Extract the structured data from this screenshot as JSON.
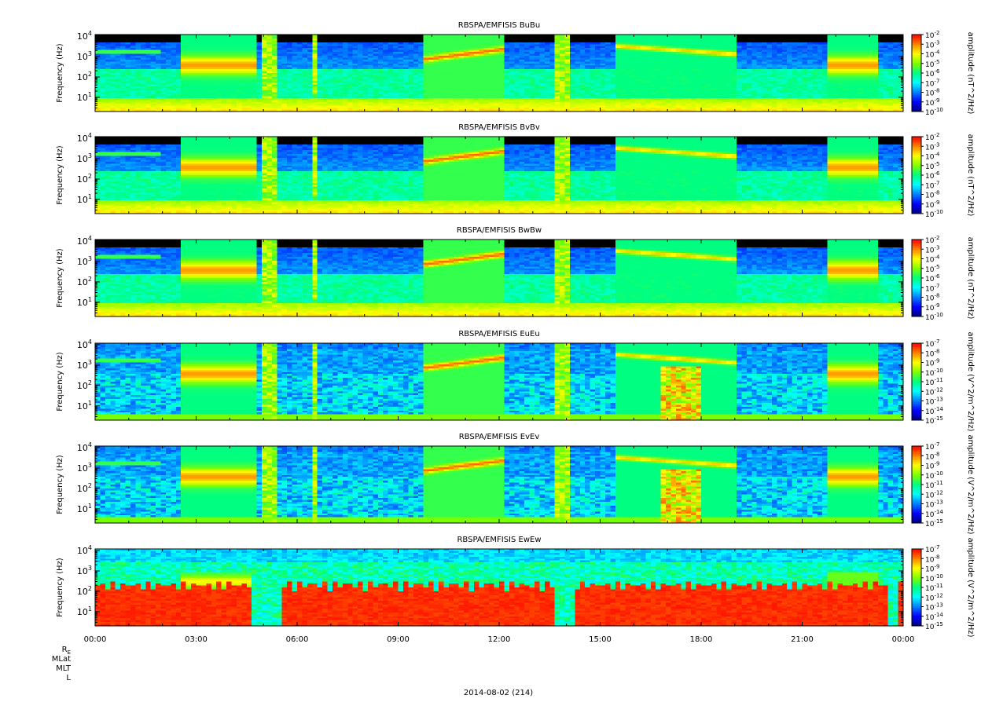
{
  "figure": {
    "date_label": "2014-08-02 (214)",
    "ephemeris_labels": [
      {
        "main": "R",
        "sub": "E"
      },
      {
        "main": "MLat",
        "sub": ""
      },
      {
        "main": "MLT",
        "sub": ""
      },
      {
        "main": "L",
        "sub": ""
      }
    ]
  },
  "chart_data": [
    {
      "type": "heatmap",
      "title": "RBSPA/EMFISIS  BuBu",
      "ylabel": "Frequency (Hz)",
      "yscale": "log",
      "ylim": [
        2,
        12000
      ],
      "yticks": [
        {
          "b": "10",
          "e": "4",
          "v": 10000
        },
        {
          "b": "10",
          "e": "3",
          "v": 1000
        },
        {
          "b": "10",
          "e": "2",
          "v": 100
        },
        {
          "b": "10",
          "e": "1",
          "v": 10
        }
      ],
      "colorbar": {
        "label": "amplitude (nT^2/Hz)",
        "scale": "log",
        "range": [
          1e-10,
          0.01
        ],
        "ticks": [
          "-2",
          "-3",
          "-4",
          "-5",
          "-6",
          "-7",
          "-8",
          "-9",
          "-10"
        ]
      },
      "features": {
        "kind": "B",
        "floor": 0.48
      }
    },
    {
      "type": "heatmap",
      "title": "RBSPA/EMFISIS  BvBv",
      "ylabel": "Frequency (Hz)",
      "yscale": "log",
      "ylim": [
        2,
        12000
      ],
      "yticks": [
        {
          "b": "10",
          "e": "4",
          "v": 10000
        },
        {
          "b": "10",
          "e": "3",
          "v": 1000
        },
        {
          "b": "10",
          "e": "2",
          "v": 100
        },
        {
          "b": "10",
          "e": "1",
          "v": 10
        }
      ],
      "colorbar": {
        "label": "amplitude (nT^2/Hz)",
        "scale": "log",
        "range": [
          1e-10,
          0.01
        ],
        "ticks": [
          "-2",
          "-3",
          "-4",
          "-5",
          "-6",
          "-7",
          "-8",
          "-9",
          "-10"
        ]
      },
      "features": {
        "kind": "B",
        "floor": 0.48
      }
    },
    {
      "type": "heatmap",
      "title": "RBSPA/EMFISIS  BwBw",
      "ylabel": "Frequency (Hz)",
      "yscale": "log",
      "ylim": [
        2,
        12000
      ],
      "yticks": [
        {
          "b": "10",
          "e": "4",
          "v": 10000
        },
        {
          "b": "10",
          "e": "3",
          "v": 1000
        },
        {
          "b": "10",
          "e": "2",
          "v": 100
        },
        {
          "b": "10",
          "e": "1",
          "v": 10
        }
      ],
      "colorbar": {
        "label": "amplitude (nT^2/Hz)",
        "scale": "log",
        "range": [
          1e-10,
          0.01
        ],
        "ticks": [
          "-2",
          "-3",
          "-4",
          "-5",
          "-6",
          "-7",
          "-8",
          "-9",
          "-10"
        ]
      },
      "features": {
        "kind": "B",
        "floor": 0.42
      }
    },
    {
      "type": "heatmap",
      "title": "RBSPA/EMFISIS  EuEu",
      "ylabel": "Frequency (Hz)",
      "yscale": "log",
      "ylim": [
        2,
        12000
      ],
      "yticks": [
        {
          "b": "10",
          "e": "4",
          "v": 10000
        },
        {
          "b": "10",
          "e": "3",
          "v": 1000
        },
        {
          "b": "10",
          "e": "2",
          "v": 100
        },
        {
          "b": "10",
          "e": "1",
          "v": 10
        }
      ],
      "colorbar": {
        "label": "amplitude (V^2/m^2/Hz)",
        "scale": "log",
        "range": [
          1e-15,
          1e-07
        ],
        "ticks": [
          "-7",
          "-8",
          "-9",
          "-10",
          "-11",
          "-12",
          "-13",
          "-14",
          "-15"
        ]
      },
      "features": {
        "kind": "E",
        "floor": 0.22
      }
    },
    {
      "type": "heatmap",
      "title": "RBSPA/EMFISIS  EvEv",
      "ylabel": "Frequency (Hz)",
      "yscale": "log",
      "ylim": [
        2,
        12000
      ],
      "yticks": [
        {
          "b": "10",
          "e": "4",
          "v": 10000
        },
        {
          "b": "10",
          "e": "3",
          "v": 1000
        },
        {
          "b": "10",
          "e": "2",
          "v": 100
        },
        {
          "b": "10",
          "e": "1",
          "v": 10
        }
      ],
      "colorbar": {
        "label": "amplitude (V^2/m^2/Hz)",
        "scale": "log",
        "range": [
          1e-15,
          1e-07
        ],
        "ticks": [
          "-7",
          "-8",
          "-9",
          "-10",
          "-11",
          "-12",
          "-13",
          "-14",
          "-15"
        ]
      },
      "features": {
        "kind": "E",
        "floor": 0.22
      }
    },
    {
      "type": "heatmap",
      "title": "RBSPA/EMFISIS  EwEw",
      "ylabel": "Frequency (Hz)",
      "yscale": "log",
      "ylim": [
        2,
        12000
      ],
      "yticks": [
        {
          "b": "10",
          "e": "4",
          "v": 10000
        },
        {
          "b": "10",
          "e": "3",
          "v": 1000
        },
        {
          "b": "10",
          "e": "2",
          "v": 100
        },
        {
          "b": "10",
          "e": "1",
          "v": 10
        }
      ],
      "colorbar": {
        "label": "amplitude (V^2/m^2/Hz)",
        "scale": "log",
        "range": [
          1e-15,
          1e-07
        ],
        "ticks": [
          "-7",
          "-8",
          "-9",
          "-10",
          "-11",
          "-12",
          "-13",
          "-14",
          "-15"
        ]
      },
      "features": {
        "kind": "W",
        "floor": 0.3
      }
    }
  ],
  "x_axis": {
    "range_hours": [
      0,
      24
    ],
    "tick_labels": [
      {
        "h": 0,
        "label": "00:00"
      },
      {
        "h": 3,
        "label": "03:00"
      },
      {
        "h": 6,
        "label": "06:00"
      },
      {
        "h": 9,
        "label": "09:00"
      },
      {
        "h": 12,
        "label": "12:00"
      },
      {
        "h": 15,
        "label": "15:00"
      },
      {
        "h": 18,
        "label": "18:00"
      },
      {
        "h": 21,
        "label": "21:00"
      },
      {
        "h": 24,
        "label": "00:00"
      }
    ]
  },
  "colormap": [
    "#000080",
    "#0000ff",
    "#0080ff",
    "#00ffff",
    "#00ff80",
    "#80ff00",
    "#ffff00",
    "#ff8000",
    "#ff0000"
  ],
  "nodata_color": "#000000"
}
